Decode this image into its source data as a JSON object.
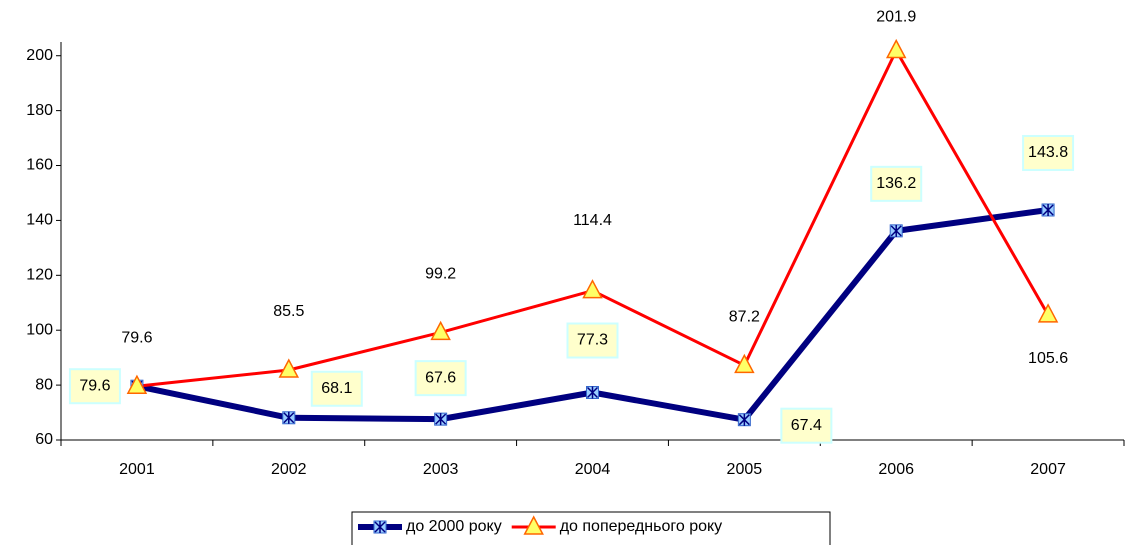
{
  "chart_data": {
    "type": "line",
    "categories": [
      "2001",
      "2002",
      "2003",
      "2004",
      "2005",
      "2006",
      "2007"
    ],
    "series": [
      {
        "name": "до 2000 року",
        "color": "#000080",
        "values": [
          79.6,
          68.1,
          67.6,
          77.3,
          67.4,
          136.2,
          143.8
        ]
      },
      {
        "name": "до попереднього року",
        "color": "#ff0000",
        "values": [
          79.6,
          85.5,
          99.2,
          114.4,
          87.2,
          201.9,
          105.6
        ]
      }
    ],
    "ylim": [
      60,
      205
    ],
    "yticks": [
      60,
      80,
      100,
      120,
      140,
      160,
      180,
      200
    ]
  }
}
